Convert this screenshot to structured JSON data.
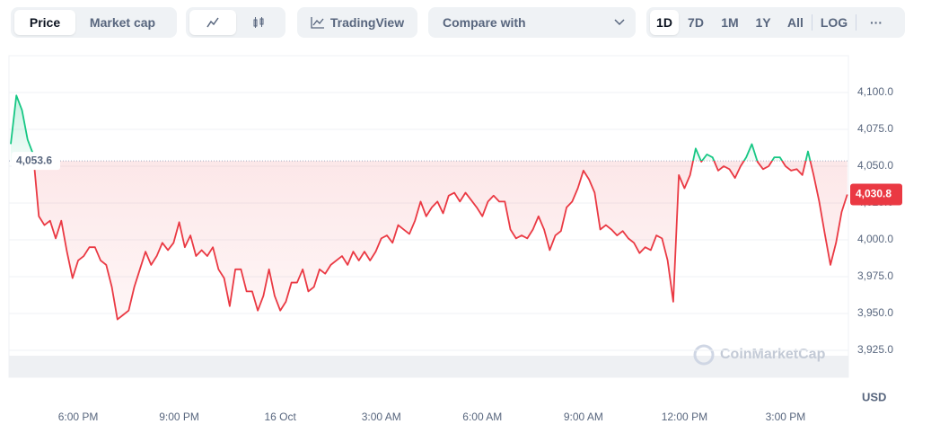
{
  "toolbar": {
    "tabs": [
      "Price",
      "Market cap"
    ],
    "tradingview": "TradingView",
    "compare": "Compare with",
    "ranges": [
      "1D",
      "7D",
      "1M",
      "1Y",
      "All"
    ],
    "log": "LOG",
    "more": "···"
  },
  "chart_data": {
    "type": "line",
    "watermark": "CoinMarketCap",
    "y_unit": "USD",
    "color_up": "#16c784",
    "color_down": "#ea3943",
    "baseline": {
      "value": 4053.6,
      "label": "4,053.6"
    },
    "ylim": [
      3910,
      4125
    ],
    "yticks": [
      {
        "value": 3925,
        "label": "3,925.0"
      },
      {
        "value": 3950,
        "label": "3,950.0"
      },
      {
        "value": 3975,
        "label": "3,975.0"
      },
      {
        "value": 4000,
        "label": "4,000.0"
      },
      {
        "value": 4025,
        "label": "4,025.0"
      },
      {
        "value": 4050,
        "label": "4,050.0"
      },
      {
        "value": 4075,
        "label": "4,075.0"
      },
      {
        "value": 4100,
        "label": "4,100.0"
      }
    ],
    "grid": true,
    "categories": [
      null,
      null,
      null,
      null,
      null,
      null,
      null,
      null,
      null,
      null,
      null,
      null,
      "6:00 PM",
      null,
      null,
      null,
      null,
      null,
      null,
      null,
      null,
      null,
      null,
      null,
      null,
      null,
      null,
      null,
      null,
      null,
      "9:00 PM",
      null,
      null,
      null,
      null,
      null,
      null,
      null,
      null,
      null,
      null,
      null,
      null,
      null,
      null,
      null,
      null,
      null,
      "16 Oct",
      null,
      null,
      null,
      null,
      null,
      null,
      null,
      null,
      null,
      null,
      null,
      null,
      null,
      null,
      null,
      null,
      null,
      "3:00 AM",
      null,
      null,
      null,
      null,
      null,
      null,
      null,
      null,
      null,
      null,
      null,
      null,
      null,
      null,
      null,
      null,
      null,
      "6:00 AM",
      null,
      null,
      null,
      null,
      null,
      null,
      null,
      null,
      null,
      null,
      null,
      null,
      null,
      null,
      null,
      null,
      null,
      "9:00 AM",
      null,
      null,
      null,
      null,
      null,
      null,
      null,
      null,
      null,
      null,
      null,
      null,
      null,
      null,
      null,
      null,
      null,
      "12:00 PM",
      null,
      null,
      null,
      null,
      null,
      null,
      null,
      null,
      null,
      null,
      null,
      null,
      null,
      null,
      null,
      null,
      null,
      "3:00 PM",
      null,
      null,
      null,
      null,
      null,
      null,
      null,
      null,
      null,
      null,
      null
    ],
    "values": [
      4065,
      4098,
      4088,
      4068,
      4058,
      4016,
      4010,
      4013,
      4001,
      4013,
      3992,
      3974,
      3986,
      3989,
      3995,
      3995,
      3986,
      3983,
      3968,
      3946,
      3949,
      3952,
      3968,
      3980,
      3992,
      3983,
      3989,
      3998,
      3993,
      3998,
      4012,
      3995,
      4003,
      3989,
      3993,
      3989,
      3995,
      3980,
      3974,
      3955,
      3980,
      3980,
      3965,
      3965,
      3952,
      3962,
      3980,
      3962,
      3952,
      3958,
      3971,
      3971,
      3980,
      3965,
      3968,
      3980,
      3977,
      3983,
      3986,
      3989,
      3983,
      3992,
      3986,
      3992,
      3986,
      3992,
      4001,
      4003,
      3998,
      4010,
      4007,
      4004,
      4013,
      4026,
      4016,
      4022,
      4026,
      4018,
      4030,
      4032,
      4026,
      4032,
      4027,
      4022,
      4016,
      4026,
      4030,
      4026,
      4026,
      4007,
      4001,
      4003,
      4001,
      4007,
      4016,
      4007,
      3993,
      4003,
      4006,
      4022,
      4026,
      4035,
      4047,
      4041,
      4032,
      4007,
      4010,
      4007,
      4003,
      4006,
      4001,
      3998,
      3991,
      3995,
      3993,
      4003,
      4001,
      3986,
      3958,
      4044,
      4035,
      4044,
      4062,
      4053,
      4058,
      4056,
      4047,
      4050,
      4048,
      4042,
      4050,
      4056,
      4065,
      4053,
      4048,
      4050,
      4056,
      4056,
      4050,
      4047,
      4048,
      4044,
      4060,
      4044,
      4026,
      4004,
      3983,
      3998,
      4019,
      4030.8
    ],
    "value_labels": [
      null,
      null,
      null,
      null,
      null,
      null,
      null,
      null,
      null,
      null,
      null,
      null,
      null,
      null,
      null,
      null,
      null,
      null,
      null,
      null,
      null,
      null,
      null,
      null,
      null,
      null,
      null,
      null,
      null,
      null,
      null,
      null,
      null,
      null,
      null,
      null,
      null,
      null,
      null,
      null,
      null,
      null,
      null,
      null,
      null,
      null,
      null,
      null,
      null,
      null,
      null,
      null,
      null,
      null,
      null,
      null,
      null,
      null,
      null,
      null,
      null,
      null,
      null,
      null,
      null,
      null,
      null,
      null,
      null,
      null,
      null,
      null,
      null,
      null,
      null,
      null,
      null,
      null,
      null,
      null,
      null,
      null,
      null,
      null,
      null,
      null,
      null,
      null,
      null,
      null,
      null,
      null,
      null,
      null,
      null,
      null,
      null,
      null,
      null,
      null,
      null,
      null,
      null,
      null,
      null,
      null,
      null,
      null,
      null,
      null,
      null,
      null,
      null,
      null,
      null,
      null,
      null,
      null,
      null,
      null,
      null,
      null,
      null,
      null,
      null,
      null,
      null,
      null,
      null,
      null,
      null,
      null,
      null,
      null,
      null,
      null,
      null,
      null,
      null,
      null,
      null,
      null,
      null,
      null,
      null,
      null,
      null,
      null,
      null,
      "4,030.8"
    ]
  }
}
